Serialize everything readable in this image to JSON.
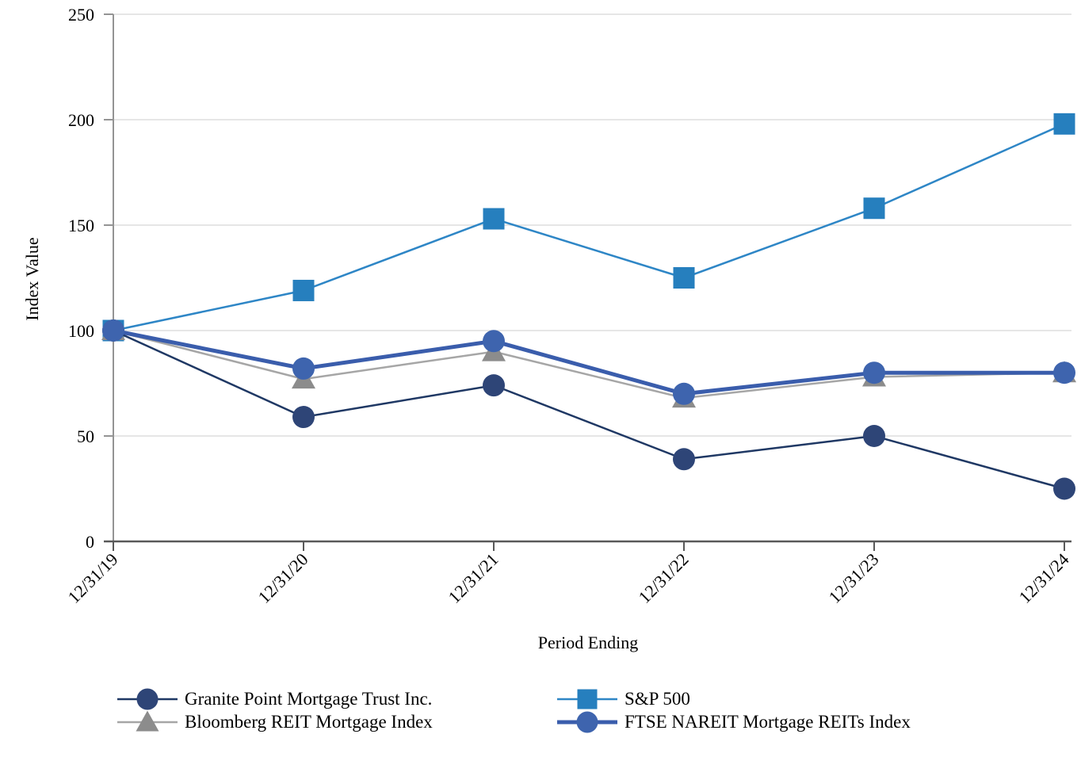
{
  "chart_data": {
    "type": "line",
    "title": "",
    "xlabel": "Period Ending",
    "ylabel": "Index Value",
    "ylim": [
      0,
      250
    ],
    "ytick_step": 50,
    "grid": "horizontal",
    "legend_position": "bottom",
    "categories": [
      "12/31/19",
      "12/31/20",
      "12/31/21",
      "12/31/22",
      "12/31/23",
      "12/31/24"
    ],
    "series": [
      {
        "name": "Granite Point Mortgage Trust Inc.",
        "marker": "circle",
        "line_color": "#1F3864",
        "marker_color": "#2E4577",
        "line_width": 2.5,
        "values": [
          100,
          59,
          74,
          39,
          50,
          25
        ]
      },
      {
        "name": "Bloomberg REIT Mortgage Index",
        "marker": "triangle",
        "line_color": "#A6A6A6",
        "marker_color": "#8C8C8C",
        "line_width": 2.5,
        "values": [
          100,
          77,
          90,
          68,
          78,
          80
        ]
      },
      {
        "name": "S&P 500",
        "marker": "square",
        "line_color": "#2E86C6",
        "marker_color": "#267FBE",
        "line_width": 2.5,
        "values": [
          100,
          119,
          153,
          125,
          158,
          198
        ]
      },
      {
        "name": "FTSE NAREIT Mortgage REITs Index",
        "marker": "circle",
        "line_color": "#3A5DAC",
        "marker_color": "#3E64AE",
        "line_width": 5,
        "values": [
          100,
          82,
          95,
          70,
          80,
          80
        ]
      }
    ],
    "draw_order": [
      2,
      1,
      0,
      3
    ],
    "legend_columns": [
      [
        0,
        1
      ],
      [
        2,
        3
      ]
    ]
  },
  "style": {
    "y_axis_color": "#949494",
    "x_axis_color": "#595959",
    "grid_color": "#DDDDDD",
    "text_color": "#000000"
  }
}
